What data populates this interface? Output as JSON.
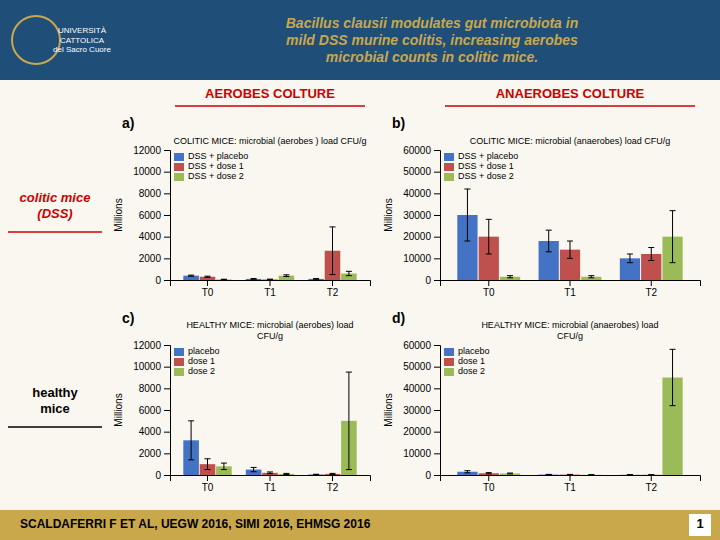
{
  "title": "Bacillus clausii modulates gut microbiota in\nmild DSS murine colitis, increasing aerobes\nmicrobial counts in colitic mice.",
  "annotations": [
    "UNIVERSITÀ\nCATTOLICA\ndel Sacro Cuore",
    "AEROBES COLTURE",
    "ANAEROBES COLTURE",
    "colitic mice\n(DSS)",
    "healthy\nmice",
    "SCALDAFERRI F ET AL, UEGW 2016, SIMI 2016, EHMSG 2016",
    "1"
  ],
  "chart_data": [
    {
      "type": "bar",
      "title": "COLITIC MICE: microbial (aerobes ) load CFU/g",
      "annotations": [
        "a)"
      ],
      "ylabel": "Millions",
      "categories": [
        "T0",
        "T1",
        "T2"
      ],
      "series": [
        {
          "name": "DSS + placebo",
          "color": "#4472C4",
          "values": [
            400,
            100,
            100
          ],
          "errors": [
            50,
            30,
            30
          ]
        },
        {
          "name": "DSS + dose 1",
          "color": "#C0504D",
          "values": [
            300,
            50,
            2700
          ],
          "errors": [
            50,
            30,
            2200
          ]
        },
        {
          "name": "DSS + dose 2",
          "color": "#9BBB59",
          "values": [
            50,
            400,
            600
          ],
          "errors": [
            20,
            80,
            200
          ]
        }
      ],
      "ylim": [
        0,
        12000
      ],
      "yticks": [
        0,
        2000,
        4000,
        6000,
        8000,
        10000,
        12000
      ],
      "legend": "upper left",
      "grid": false
    },
    {
      "type": "bar",
      "title": "COLITIC MICE: microbial (anaerobes) load CFU/g",
      "annotations": [
        "b)"
      ],
      "ylabel": "Millions",
      "categories": [
        "T0",
        "T1",
        "T2"
      ],
      "series": [
        {
          "name": "DSS + placebo",
          "color": "#4472C4",
          "values": [
            30000,
            18000,
            10000
          ],
          "errors": [
            12000,
            5000,
            2000
          ]
        },
        {
          "name": "DSS + dose 1",
          "color": "#C0504D",
          "values": [
            20000,
            14000,
            12000
          ],
          "errors": [
            8000,
            4000,
            3000
          ]
        },
        {
          "name": "DSS + dose 2",
          "color": "#9BBB59",
          "values": [
            1500,
            1500,
            20000
          ],
          "errors": [
            500,
            500,
            12000
          ]
        }
      ],
      "ylim": [
        0,
        60000
      ],
      "yticks": [
        0,
        10000,
        20000,
        30000,
        40000,
        50000,
        60000
      ],
      "legend": "upper left",
      "grid": false
    },
    {
      "type": "bar",
      "title": "HEALTHY MICE: microbial (aerobes) load\nCFU/g",
      "annotations": [
        "c)"
      ],
      "ylabel": "Millions",
      "categories": [
        "T0",
        "T1",
        "T2"
      ],
      "series": [
        {
          "name": "placebo",
          "color": "#4472C4",
          "values": [
            3200,
            500,
            50
          ],
          "errors": [
            1800,
            200,
            20
          ]
        },
        {
          "name": "dose 1",
          "color": "#C0504D",
          "values": [
            1000,
            200,
            100
          ],
          "errors": [
            500,
            80,
            50
          ]
        },
        {
          "name": "dose 2",
          "color": "#9BBB59",
          "values": [
            800,
            100,
            5000
          ],
          "errors": [
            300,
            50,
            4500
          ]
        }
      ],
      "ylim": [
        0,
        12000
      ],
      "yticks": [
        0,
        2000,
        4000,
        6000,
        8000,
        10000,
        12000
      ],
      "legend": "upper left",
      "grid": false
    },
    {
      "type": "bar",
      "title": "HEALTHY MICE: microbial (anaerobes) load\nCFU/g",
      "annotations": [
        "d)"
      ],
      "ylabel": "Millions",
      "categories": [
        "T0",
        "T1",
        "T2"
      ],
      "series": [
        {
          "name": "placebo",
          "color": "#4472C4",
          "values": [
            1500,
            200,
            100
          ],
          "errors": [
            500,
            80,
            50
          ]
        },
        {
          "name": "dose 1",
          "color": "#C0504D",
          "values": [
            800,
            200,
            100
          ],
          "errors": [
            300,
            80,
            50
          ]
        },
        {
          "name": "dose 2",
          "color": "#9BBB59",
          "values": [
            700,
            100,
            45000
          ],
          "errors": [
            200,
            50,
            13000
          ]
        }
      ],
      "ylim": [
        0,
        60000
      ],
      "yticks": [
        0,
        10000,
        20000,
        30000,
        40000,
        50000,
        60000
      ],
      "legend": "upper left",
      "grid": false
    }
  ]
}
